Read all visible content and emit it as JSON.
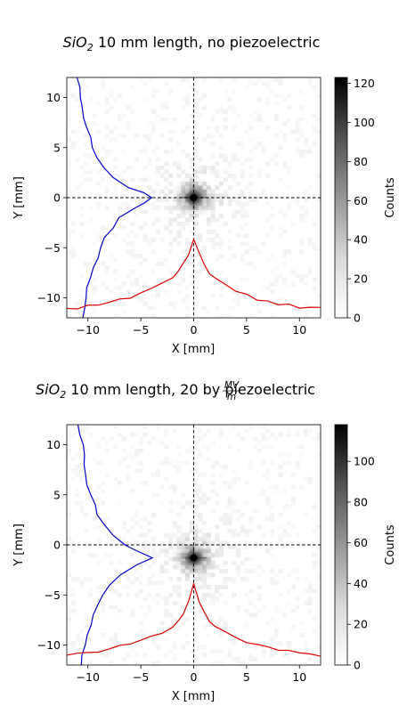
{
  "chart_data": [
    {
      "type": "heatmap",
      "title": {
        "main": "SiO",
        "sub": "2",
        "rest": " 10 mm length, no piezoelectric"
      },
      "xlabel": "X [mm]",
      "ylabel": "Y [mm]",
      "xlim": [
        -12,
        12
      ],
      "ylim": [
        -12,
        12
      ],
      "xticks": [
        -10,
        -5,
        0,
        5,
        10
      ],
      "yticks": [
        -10,
        -5,
        0,
        5,
        10
      ],
      "colorbar": {
        "label": "Counts",
        "ticks": [
          0,
          20,
          40,
          60,
          80,
          100,
          120
        ],
        "max": 123,
        "colormap": "Greys"
      },
      "peak": {
        "x": 0.0,
        "y": 0.0,
        "counts": 123
      },
      "crosshair": {
        "x": 0,
        "y": 0,
        "color": "#000000",
        "style": "dashed"
      },
      "series": [
        {
          "color": "#0000cc",
          "orientation": "y-projection",
          "y": [
            -12,
            -11,
            -10,
            -9,
            -8,
            -7,
            -6,
            -5,
            -4,
            -3,
            -2,
            -1,
            -0.5,
            0,
            0.5,
            1,
            2,
            3,
            4,
            5,
            6,
            7,
            8,
            9,
            10,
            11,
            12
          ],
          "x": [
            -10.6,
            -10.4,
            -10.3,
            -10.0,
            -9.8,
            -9.5,
            -9.2,
            -8.8,
            -8.3,
            -7.7,
            -7.0,
            -5.6,
            -4.6,
            -4.0,
            -4.8,
            -6.2,
            -7.6,
            -8.4,
            -9.0,
            -9.5,
            -9.8,
            -10.0,
            -10.3,
            -10.5,
            -10.6,
            -10.8,
            -10.9
          ]
        },
        {
          "color": "#dd0000",
          "orientation": "x-projection",
          "x": [
            -12,
            -11,
            -10,
            -9,
            -8,
            -7,
            -6,
            -5,
            -4,
            -3,
            -2,
            -1.5,
            -1,
            -0.5,
            0,
            0.5,
            1,
            1.5,
            2,
            3,
            4,
            5,
            6,
            7,
            8,
            9,
            10,
            11,
            12
          ],
          "y": [
            -11.0,
            -11.0,
            -10.8,
            -10.7,
            -10.5,
            -10.2,
            -10.0,
            -9.6,
            -9.2,
            -8.7,
            -8.0,
            -7.5,
            -6.6,
            -5.6,
            -4.0,
            -5.6,
            -6.6,
            -7.5,
            -8.0,
            -8.8,
            -9.4,
            -9.8,
            -10.2,
            -10.4,
            -10.6,
            -10.8,
            -10.9,
            -11.0,
            -11.0
          ]
        }
      ]
    },
    {
      "type": "heatmap",
      "title": {
        "main": "SiO",
        "sub": "2",
        "mid": " 10 mm length, 20 ",
        "frac_num": "MV",
        "frac_den": "m",
        "rest": " by piezoelectric"
      },
      "xlabel": "X [mm]",
      "ylabel": "Y [mm]",
      "xlim": [
        -12,
        12
      ],
      "ylim": [
        -12,
        12
      ],
      "xticks": [
        -10,
        -5,
        0,
        5,
        10
      ],
      "yticks": [
        -10,
        -5,
        0,
        5,
        10
      ],
      "colorbar": {
        "label": "Counts",
        "ticks": [
          0,
          20,
          40,
          60,
          80,
          100
        ],
        "max": 118,
        "colormap": "Greys"
      },
      "peak": {
        "x": 0.0,
        "y": -1.3,
        "counts": 118
      },
      "crosshair": {
        "x": 0,
        "y": 0,
        "color": "#000000",
        "style": "dashed"
      },
      "series": [
        {
          "color": "#0000cc",
          "orientation": "y-projection",
          "y": [
            -12,
            -11,
            -10,
            -9,
            -8,
            -7,
            -6,
            -5,
            -4,
            -3,
            -2,
            -1.3,
            -0.5,
            0,
            1,
            2,
            3,
            4,
            5,
            6,
            7,
            8,
            9,
            10,
            11,
            12
          ],
          "x": [
            -10.8,
            -10.5,
            -10.3,
            -10.0,
            -9.7,
            -9.4,
            -9.0,
            -8.5,
            -7.9,
            -7.0,
            -5.5,
            -4.0,
            -5.6,
            -6.6,
            -7.8,
            -8.5,
            -9.0,
            -9.4,
            -9.7,
            -10.0,
            -10.2,
            -10.4,
            -10.5,
            -10.6,
            -10.7,
            -10.8
          ]
        },
        {
          "color": "#dd0000",
          "orientation": "x-projection",
          "x": [
            -12,
            -11,
            -10,
            -9,
            -8,
            -7,
            -6,
            -5,
            -4,
            -3,
            -2,
            -1.5,
            -1,
            -0.5,
            0,
            0.5,
            1,
            1.5,
            2,
            3,
            4,
            5,
            6,
            7,
            8,
            9,
            10,
            11,
            12
          ],
          "y": [
            -11.0,
            -10.9,
            -10.7,
            -10.6,
            -10.4,
            -10.1,
            -9.8,
            -9.5,
            -9.1,
            -8.7,
            -8.1,
            -7.6,
            -6.8,
            -5.8,
            -4.0,
            -5.8,
            -6.8,
            -7.6,
            -8.1,
            -8.8,
            -9.3,
            -9.8,
            -10.1,
            -10.3,
            -10.5,
            -10.7,
            -10.8,
            -11.0,
            -11.0
          ]
        }
      ]
    }
  ]
}
